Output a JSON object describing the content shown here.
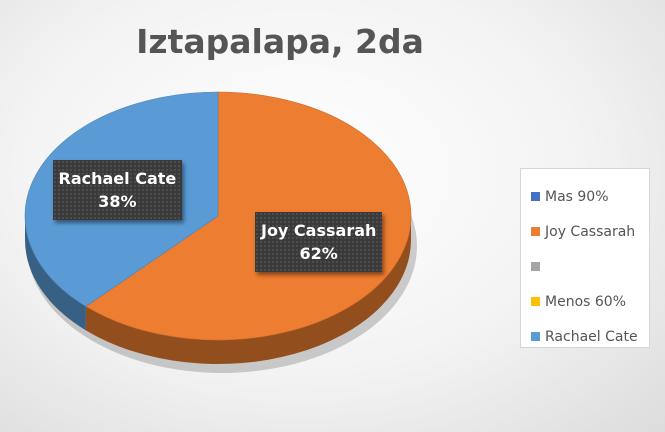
{
  "chart_data": {
    "type": "pie",
    "title": "Iztapalapa, 2da",
    "slices": [
      {
        "name": "Mas 90%",
        "value": 0,
        "color": "#4472C4"
      },
      {
        "name": "Joy Cassarah",
        "value": 62,
        "label": "62%",
        "color": "#ED7D31"
      },
      {
        "name": "",
        "value": 0,
        "color": "#A5A5A5"
      },
      {
        "name": "Menos 60%",
        "value": 0,
        "color": "#FFC000"
      },
      {
        "name": "Rachael Cate",
        "value": 38,
        "label": "38%",
        "color": "#5B9BD5"
      }
    ],
    "legend": {
      "position": "right",
      "items": [
        "Mas 90%",
        "Joy Cassarah",
        "",
        "Menos 60%",
        "Rachael Cate"
      ]
    },
    "style": "3d"
  }
}
